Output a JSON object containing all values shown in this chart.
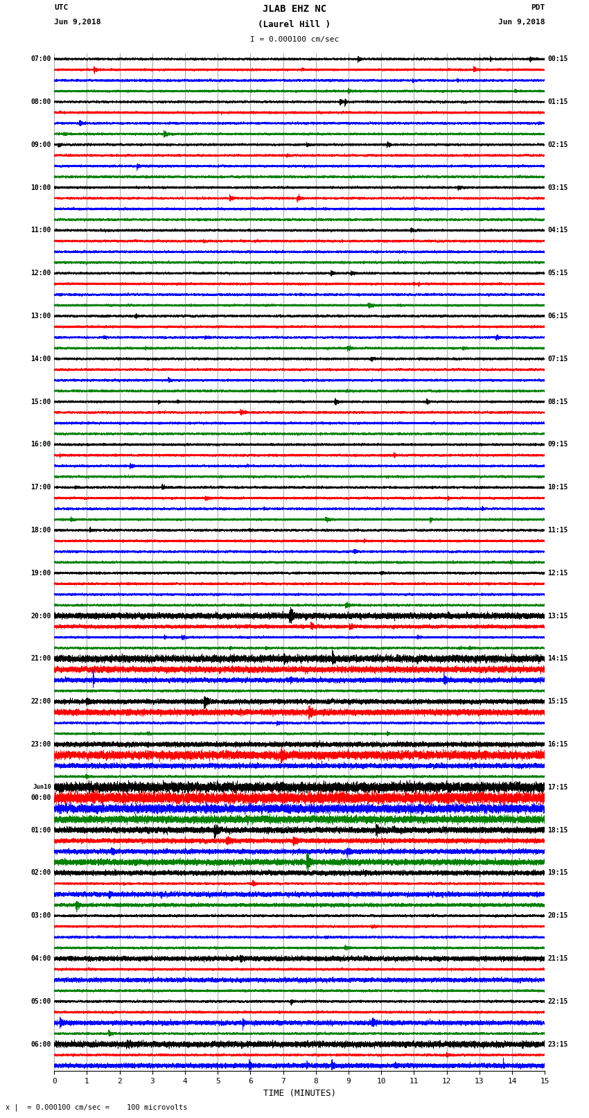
{
  "title_line1": "JLAB EHZ NC",
  "title_line2": "(Laurel Hill )",
  "scale_text": "I = 0.000100 cm/sec",
  "left_header": "UTC",
  "left_date": "Jun 9,2018",
  "right_header": "PDT",
  "right_date": "Jun 9,2018",
  "xlabel": "TIME (MINUTES)",
  "footnote": "= 0.000100 cm/sec =    100 microvolts",
  "xmin": 0,
  "xmax": 15,
  "xticks": [
    0,
    1,
    2,
    3,
    4,
    5,
    6,
    7,
    8,
    9,
    10,
    11,
    12,
    13,
    14,
    15
  ],
  "background_color": "#ffffff",
  "trace_colors": [
    "black",
    "red",
    "blue",
    "green"
  ],
  "utc_labels": [
    "07:00",
    "",
    "",
    "",
    "08:00",
    "",
    "",
    "",
    "09:00",
    "",
    "",
    "",
    "10:00",
    "",
    "",
    "",
    "11:00",
    "",
    "",
    "",
    "12:00",
    "",
    "",
    "",
    "13:00",
    "",
    "",
    "",
    "14:00",
    "",
    "",
    "",
    "15:00",
    "",
    "",
    "",
    "16:00",
    "",
    "",
    "",
    "17:00",
    "",
    "",
    "",
    "18:00",
    "",
    "",
    "",
    "19:00",
    "",
    "",
    "",
    "20:00",
    "",
    "",
    "",
    "21:00",
    "",
    "",
    "",
    "22:00",
    "",
    "",
    "",
    "23:00",
    "",
    "",
    "",
    "Jun10",
    "00:00",
    "",
    "",
    "01:00",
    "",
    "",
    "",
    "02:00",
    "",
    "",
    "",
    "03:00",
    "",
    "",
    "",
    "04:00",
    "",
    "",
    "",
    "05:00",
    "",
    "",
    "",
    "06:00",
    "",
    ""
  ],
  "pdt_labels": [
    "00:15",
    "",
    "",
    "",
    "01:15",
    "",
    "",
    "",
    "02:15",
    "",
    "",
    "",
    "03:15",
    "",
    "",
    "",
    "04:15",
    "",
    "",
    "",
    "05:15",
    "",
    "",
    "",
    "06:15",
    "",
    "",
    "",
    "07:15",
    "",
    "",
    "",
    "08:15",
    "",
    "",
    "",
    "09:15",
    "",
    "",
    "",
    "10:15",
    "",
    "",
    "",
    "11:15",
    "",
    "",
    "",
    "12:15",
    "",
    "",
    "",
    "13:15",
    "",
    "",
    "",
    "14:15",
    "",
    "",
    "",
    "15:15",
    "",
    "",
    "",
    "16:15",
    "",
    "",
    "",
    "17:15",
    "",
    "",
    "",
    "18:15",
    "",
    "",
    "",
    "19:15",
    "",
    "",
    "",
    "20:15",
    "",
    "",
    "",
    "21:15",
    "",
    "",
    "",
    "22:15",
    "",
    "",
    "",
    "23:15",
    "",
    ""
  ],
  "n_rows": 95,
  "grid_color": "#808080",
  "grid_linewidth": 0.5,
  "trace_linewidth": 0.45,
  "fig_width": 8.5,
  "fig_height": 16.13,
  "dpi": 100
}
